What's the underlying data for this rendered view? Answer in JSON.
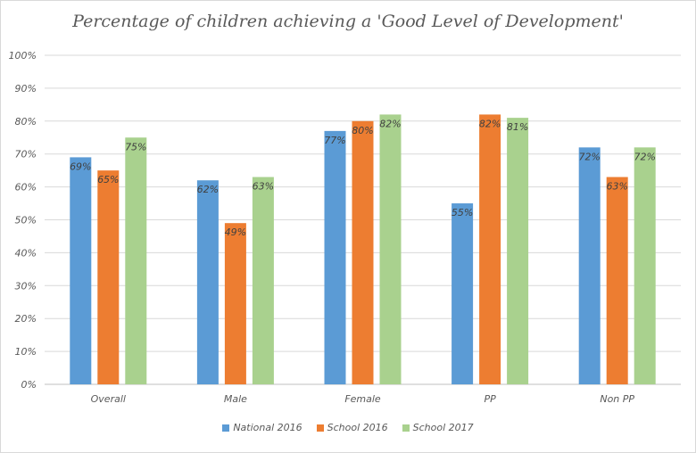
{
  "chart_data": {
    "type": "bar",
    "title": "Percentage of children achieving a 'Good Level of Development'",
    "categories": [
      "Overall",
      "Male",
      "Female",
      "PP",
      "Non PP"
    ],
    "series": [
      {
        "name": "National 2016",
        "color": "#5b9bd5",
        "values": [
          69,
          62,
          77,
          55,
          72
        ],
        "labels": [
          "69%",
          "62%",
          "77%",
          "55%",
          "72%"
        ]
      },
      {
        "name": "School 2016",
        "color": "#ed7d31",
        "values": [
          65,
          49,
          80,
          82,
          63
        ],
        "labels": [
          "65%",
          "49%",
          "80%",
          "82%",
          "63%"
        ]
      },
      {
        "name": "School 2017",
        "color": "#a9d18e",
        "values": [
          75,
          63,
          82,
          81,
          72
        ],
        "labels": [
          "75%",
          "63%",
          "82%",
          "81%",
          "72%"
        ]
      }
    ],
    "ylim": [
      0,
      100
    ],
    "yticks": [
      "0%",
      "10%",
      "20%",
      "30%",
      "40%",
      "50%",
      "60%",
      "70%",
      "80%",
      "90%",
      "100%"
    ],
    "grid": true,
    "legend_position": "bottom"
  }
}
